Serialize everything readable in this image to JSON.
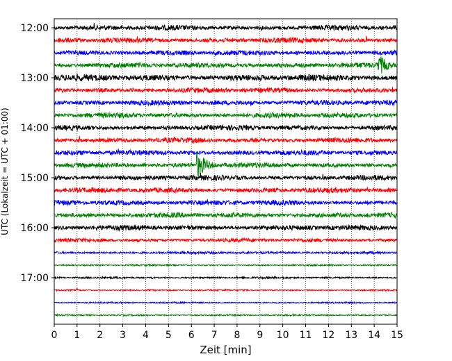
{
  "chart_data": {
    "type": "line",
    "title": "",
    "xlabel": "Zeit  [min]",
    "ylabel": "UTC (Lokalzeit = UTC + 01:00)",
    "xlim": [
      0,
      15
    ],
    "x_ticks": [
      0,
      1,
      2,
      3,
      4,
      5,
      6,
      7,
      8,
      9,
      10,
      11,
      12,
      13,
      14,
      15
    ],
    "y_tick_labels": [
      "12:00",
      "13:00",
      "14:00",
      "15:00",
      "16:00",
      "17:00"
    ],
    "grid": "vertical dotted",
    "row_interval_minutes": 15,
    "color_cycle": [
      "#000000",
      "#ff0000",
      "#0000ff",
      "#008000"
    ],
    "series": [
      {
        "start": "12:00",
        "color": "#000000",
        "amp": 4,
        "events": [
          {
            "t": 1.75,
            "a": 9
          },
          {
            "t": 9.05,
            "a": 8
          },
          {
            "t": 14.9,
            "a": 6
          }
        ]
      },
      {
        "start": "12:15",
        "color": "#ff0000",
        "amp": 4,
        "events": [
          {
            "t": 3.65,
            "a": 9
          },
          {
            "t": 13.65,
            "a": 8
          }
        ]
      },
      {
        "start": "12:30",
        "color": "#0000ff",
        "amp": 4,
        "events": [
          {
            "t": 7.05,
            "a": 7
          },
          {
            "t": 13.0,
            "a": 6
          },
          {
            "t": 14.0,
            "a": 5
          }
        ]
      },
      {
        "start": "12:45",
        "color": "#008000",
        "amp": 4,
        "events": [
          {
            "t": 3.75,
            "a": 7
          },
          {
            "t": 10.4,
            "a": 7
          },
          {
            "t": 14.2,
            "a": 16,
            "dur": 0.9
          }
        ]
      },
      {
        "start": "13:00",
        "color": "#000000",
        "amp": 5,
        "events": [
          {
            "t": 9.2,
            "a": 8
          },
          {
            "t": 14.1,
            "a": 6
          }
        ]
      },
      {
        "start": "13:15",
        "color": "#ff0000",
        "amp": 4,
        "events": [
          {
            "t": 3.45,
            "a": 7
          },
          {
            "t": 9.1,
            "a": 6
          },
          {
            "t": 14.8,
            "a": 7
          }
        ]
      },
      {
        "start": "13:30",
        "color": "#0000ff",
        "amp": 4,
        "events": [
          {
            "t": 5.75,
            "a": 6
          },
          {
            "t": 8.6,
            "a": 7
          },
          {
            "t": 11.8,
            "a": 6
          },
          {
            "t": 14.0,
            "a": 6
          }
        ]
      },
      {
        "start": "13:45",
        "color": "#008000",
        "amp": 4,
        "events": [
          {
            "t": 4.5,
            "a": 6
          },
          {
            "t": 12.4,
            "a": 5
          }
        ]
      },
      {
        "start": "14:00",
        "color": "#000000",
        "amp": 4,
        "events": [
          {
            "t": 3.95,
            "a": 7
          },
          {
            "t": 9.75,
            "a": 8
          }
        ]
      },
      {
        "start": "14:15",
        "color": "#ff0000",
        "amp": 4,
        "events": [
          {
            "t": 1.1,
            "a": 7
          },
          {
            "t": 6.8,
            "a": 7
          },
          {
            "t": 14.0,
            "a": 5
          }
        ]
      },
      {
        "start": "14:30",
        "color": "#0000ff",
        "amp": 4,
        "events": [
          {
            "t": 2.8,
            "a": 6
          },
          {
            "t": 5.9,
            "a": 6
          },
          {
            "t": 14.0,
            "a": 6
          }
        ]
      },
      {
        "start": "14:45",
        "color": "#008000",
        "amp": 4,
        "events": [
          {
            "t": 3.95,
            "a": 7
          },
          {
            "t": 6.25,
            "a": 20,
            "dur": 1.0
          },
          {
            "t": 12.3,
            "a": 5
          }
        ]
      },
      {
        "start": "15:00",
        "color": "#000000",
        "amp": 4,
        "events": [
          {
            "t": 6.4,
            "a": 9
          },
          {
            "t": 11.75,
            "a": 7
          }
        ]
      },
      {
        "start": "15:15",
        "color": "#ff0000",
        "amp": 4,
        "events": [
          {
            "t": 3.0,
            "a": 8
          },
          {
            "t": 7.8,
            "a": 6
          },
          {
            "t": 13.7,
            "a": 5
          }
        ]
      },
      {
        "start": "15:30",
        "color": "#0000ff",
        "amp": 4,
        "events": [
          {
            "t": 6.7,
            "a": 6
          },
          {
            "t": 14.0,
            "a": 6
          }
        ]
      },
      {
        "start": "15:45",
        "color": "#008000",
        "amp": 4,
        "events": [
          {
            "t": 13.7,
            "a": 7
          }
        ]
      },
      {
        "start": "16:00",
        "color": "#000000",
        "amp": 4,
        "events": [
          {
            "t": 1.85,
            "a": 5
          },
          {
            "t": 5.85,
            "a": 5
          }
        ]
      },
      {
        "start": "16:15",
        "color": "#ff0000",
        "amp": 3,
        "events": [
          {
            "t": 1.55,
            "a": 5
          },
          {
            "t": 11.25,
            "a": 8
          }
        ]
      },
      {
        "start": "16:30",
        "color": "#0000ff",
        "amp": 2,
        "events": [
          {
            "t": 8.5,
            "a": 5
          }
        ]
      },
      {
        "start": "16:45",
        "color": "#008000",
        "amp": 1.2,
        "events": [
          {
            "t": 4.8,
            "a": 2
          }
        ]
      },
      {
        "start": "17:00",
        "color": "#000000",
        "amp": 1.5,
        "events": [
          {
            "t": 4.3,
            "a": 8
          },
          {
            "t": 8.0,
            "a": 3
          }
        ]
      },
      {
        "start": "17:15",
        "color": "#ff0000",
        "amp": 1.2,
        "events": [
          {
            "t": 1.0,
            "a": 4
          }
        ]
      },
      {
        "start": "17:30",
        "color": "#0000ff",
        "amp": 1.2,
        "events": []
      },
      {
        "start": "17:45",
        "color": "#008000",
        "amp": 1.2,
        "events": []
      }
    ]
  }
}
